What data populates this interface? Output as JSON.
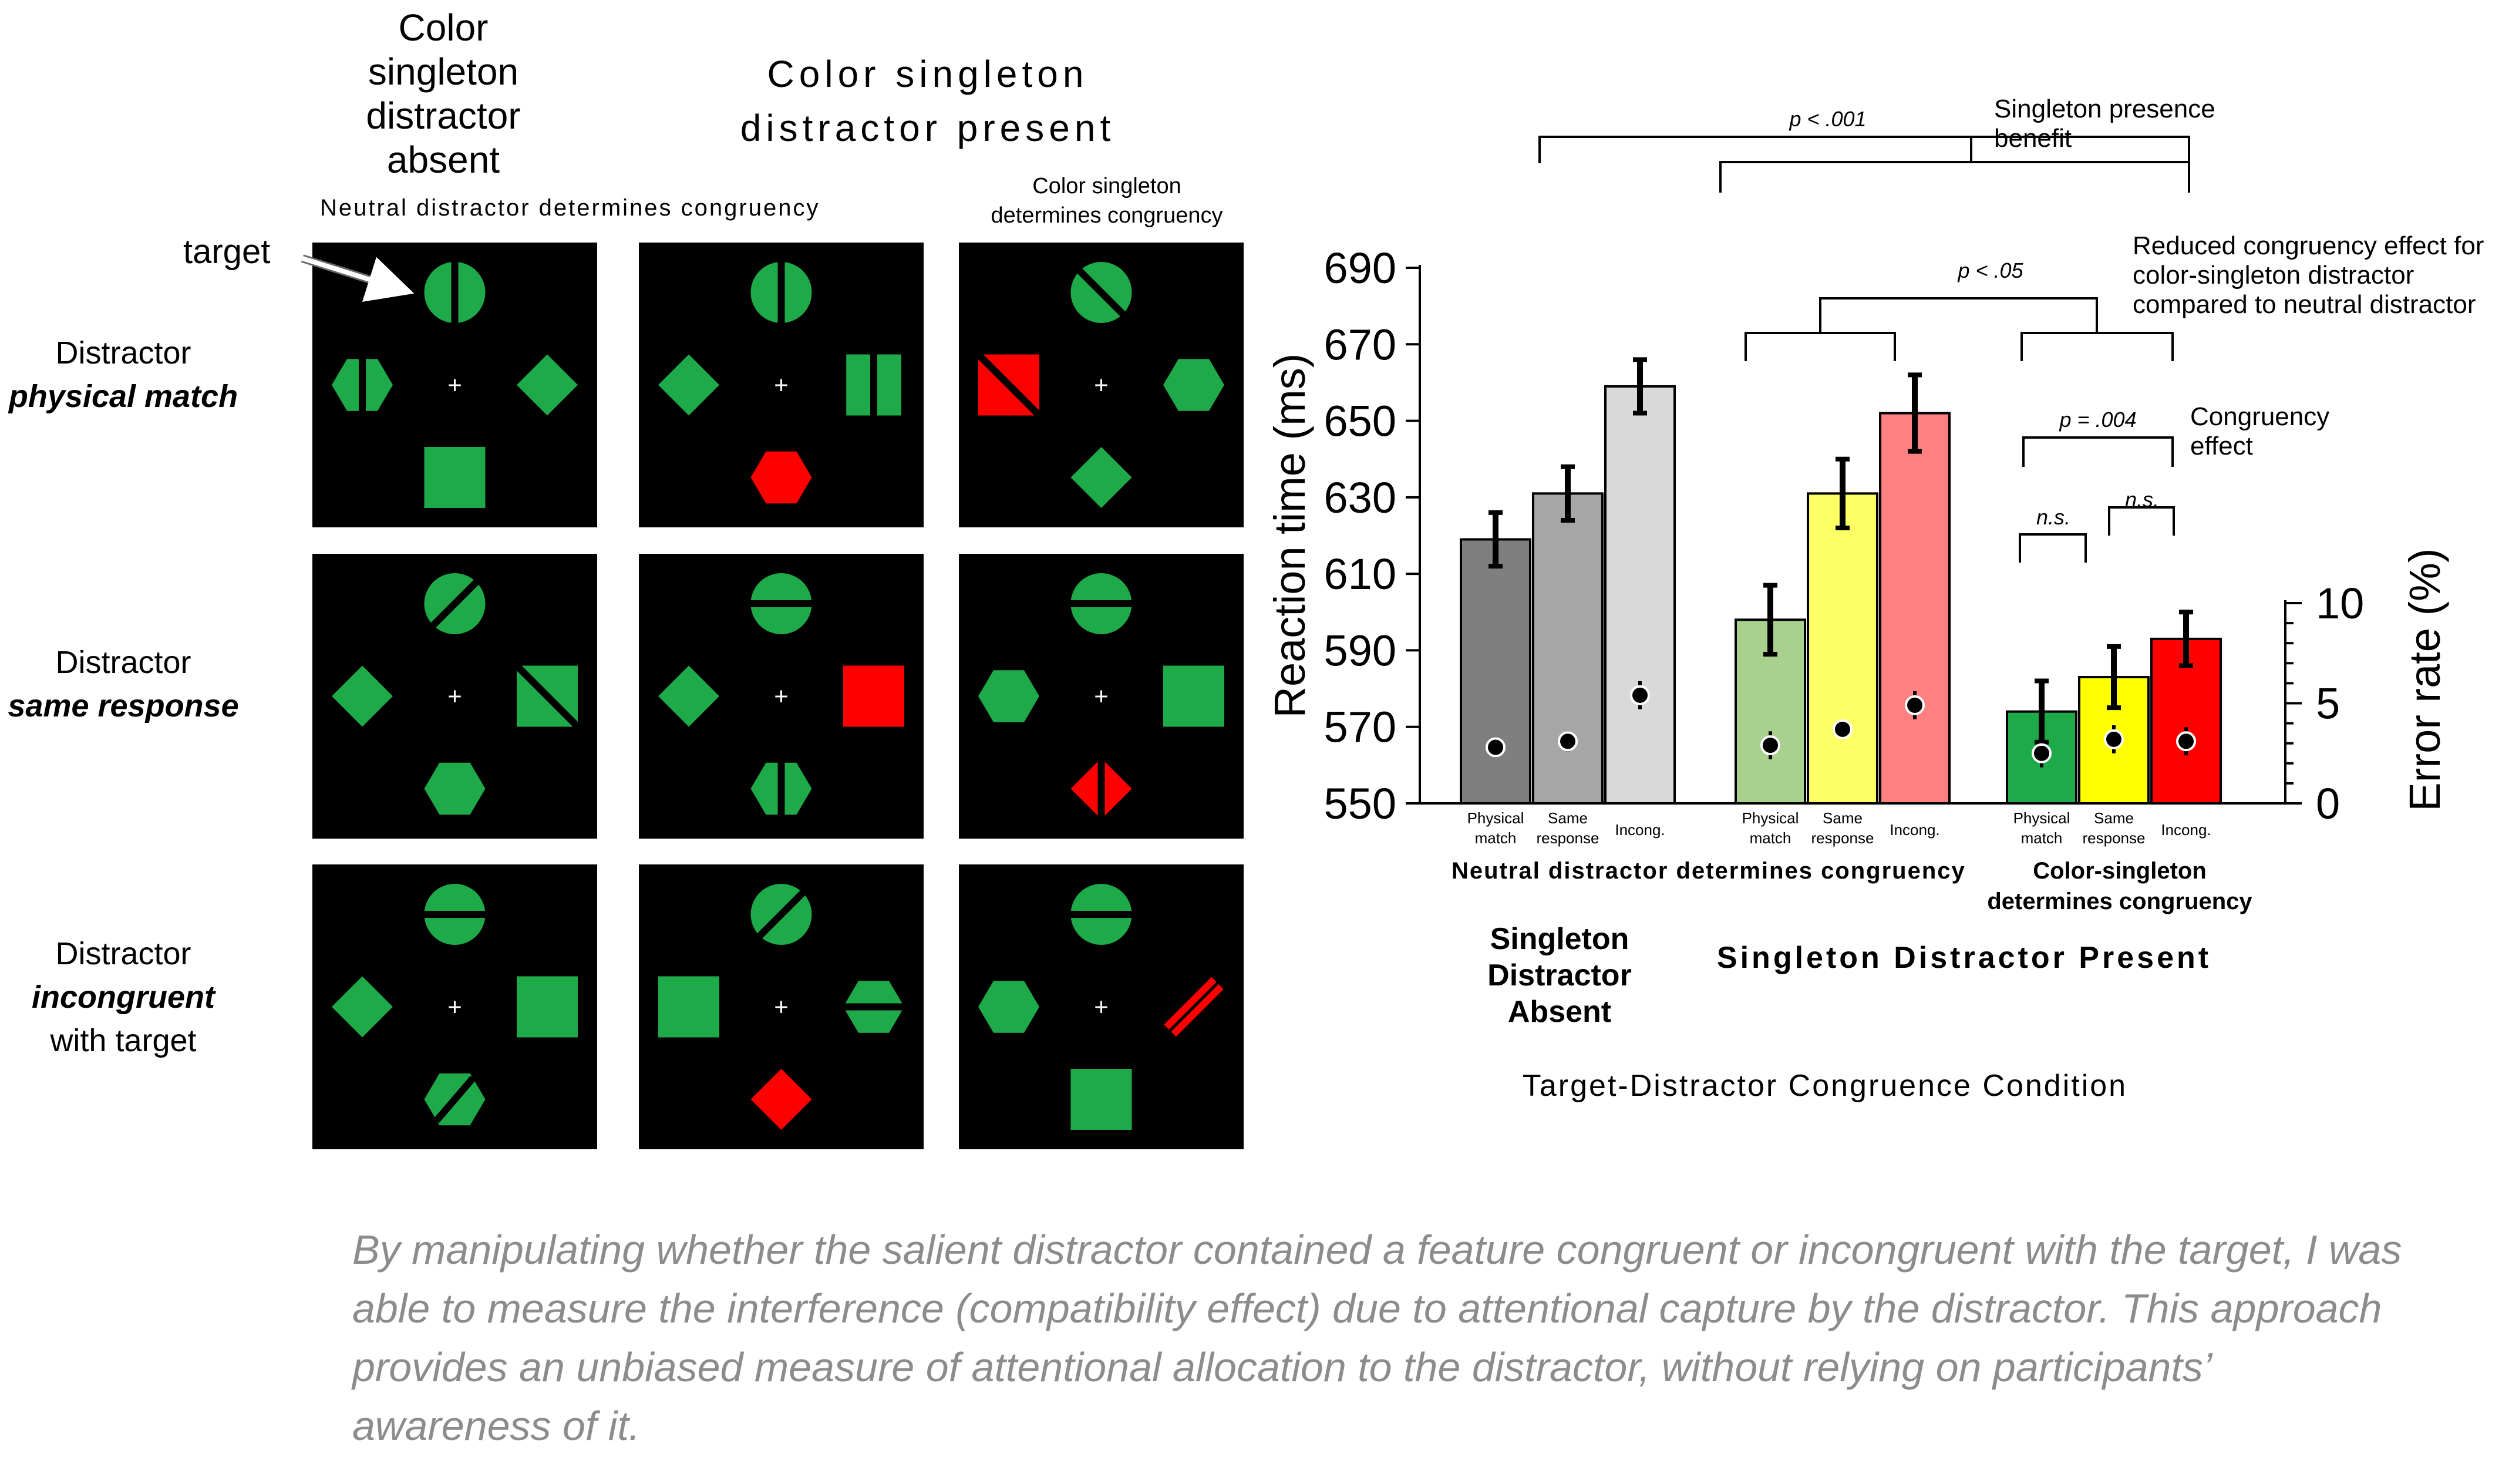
{
  "stimulus": {
    "headers": {
      "absent": "Color singleton distractor absent",
      "absent_lines": [
        "Color",
        "singleton",
        "distractor",
        "absent"
      ],
      "present_lines": [
        "Color singleton",
        "distractor present"
      ],
      "neutral_sub": "Neutral distractor determines congruency",
      "color_sub_lines": [
        "Color singleton",
        "determines congruency"
      ]
    },
    "target_label": "target",
    "rows": [
      {
        "lines": [
          "Distractor",
          "physical match"
        ],
        "emph": 1
      },
      {
        "lines": [
          "Distractor",
          "same response"
        ],
        "emph": 1
      },
      {
        "lines": [
          "Distractor",
          "incongruent",
          "with target"
        ],
        "emph": 1
      }
    ],
    "colors": {
      "green": "#1faa4a",
      "red": "#ff0000",
      "panel": "#000000",
      "fixation": "#ffffff"
    },
    "fixation": "+"
  },
  "chart_data": {
    "type": "bar",
    "ylabel": "Reaction time (ms)",
    "ylabel2": "Error rate (%)",
    "ylim": [
      550,
      690
    ],
    "yticks": [
      550,
      570,
      590,
      610,
      630,
      650,
      670,
      690
    ],
    "ylim2": [
      0,
      10
    ],
    "yticks2": [
      0,
      5,
      10
    ],
    "groups": [
      {
        "caption_lines": [
          "Singleton",
          "Distractor",
          "Absent"
        ],
        "bars": [
          {
            "label": [
              "Physical",
              "match"
            ],
            "rt": 619,
            "rt_err": 7,
            "error_rate": 2.8,
            "err_err": 0.5,
            "color": "#7f7f7f"
          },
          {
            "label": [
              "Same",
              "response"
            ],
            "rt": 631,
            "rt_err": 7,
            "error_rate": 3.1,
            "err_err": 0.5,
            "color": "#a6a6a6"
          },
          {
            "label": [
              "Incong."
            ],
            "rt": 659,
            "rt_err": 7,
            "error_rate": 5.4,
            "err_err": 0.7,
            "color": "#d9d9d9"
          }
        ]
      },
      {
        "bars": [
          {
            "label": [
              "Physical",
              "match"
            ],
            "rt": 598,
            "rt_err": 9,
            "error_rate": 2.9,
            "err_err": 0.7,
            "color": "#a9d18e"
          },
          {
            "label": [
              "Same",
              "response"
            ],
            "rt": 631,
            "rt_err": 9,
            "error_rate": 3.7,
            "err_err": 0.5,
            "color": "#ffff66"
          },
          {
            "label": [
              "Incong."
            ],
            "rt": 652,
            "rt_err": 10,
            "error_rate": 4.9,
            "err_err": 0.7,
            "color": "#ff8080"
          }
        ]
      },
      {
        "bars": [
          {
            "label": [
              "Physical",
              "match"
            ],
            "rt": 574,
            "rt_err": 8,
            "error_rate": 2.5,
            "err_err": 0.7,
            "color": "#1faa4a"
          },
          {
            "label": [
              "Same",
              "response"
            ],
            "rt": 583,
            "rt_err": 8,
            "error_rate": 3.2,
            "err_err": 0.7,
            "color": "#ffff00"
          },
          {
            "label": [
              "Incong."
            ],
            "rt": 593,
            "rt_err": 7,
            "error_rate": 3.1,
            "err_err": 0.7,
            "color": "#ff0000"
          }
        ]
      }
    ],
    "subcaption_neutral": "Neutral distractor determines congruency",
    "subcaption_color_lines": [
      "Color-singleton",
      "determines congruency"
    ],
    "present_caption": "Singleton Distractor Present",
    "xlabel": "Target-Distractor Congruence Condition",
    "annotations": {
      "presence": {
        "p": "p < .001",
        "label_lines": [
          "Singleton presence",
          "benefit"
        ]
      },
      "reduced": {
        "p": "p < .05",
        "label_lines": [
          "Reduced congruency effect for",
          "color-singleton distractor",
          "compared to neutral distractor"
        ]
      },
      "congruency": {
        "p": "p = .004",
        "label_lines": [
          "Congruency",
          "effect"
        ]
      },
      "ns1": "n.s.",
      "ns2": "n.s."
    }
  },
  "caption": "By manipulating whether the salient distractor contained a feature congruent or incongruent with the target, I was able to measure the interference (compatibility effect) due to attentional capture by the distractor. This approach provides an unbiased measure of attentional allocation to the distractor, without relying on participants’ awareness of it."
}
